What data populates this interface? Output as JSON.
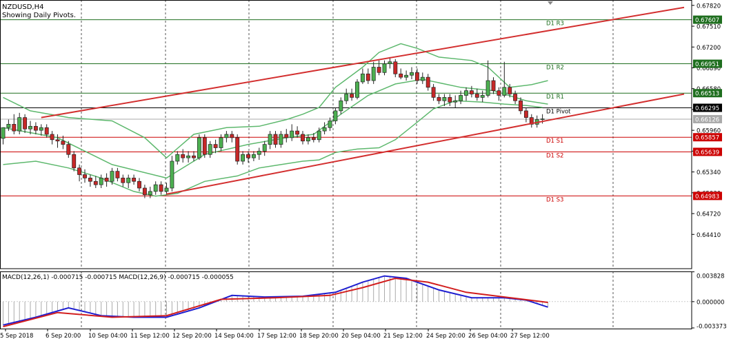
{
  "header": {
    "symbol": "NZDUSD,H4",
    "subtitle": "Showing Daily Pivots."
  },
  "colors": {
    "bull": "#4caf50",
    "bear": "#c62828",
    "band": "#5db86d",
    "channel": "#d32f2f",
    "pivot_green": "#1e6e1e",
    "pivot_red": "#cc0000",
    "pivot_black": "#000000",
    "macd_blue": "#1e1ed0",
    "macd_red": "#d21e1e",
    "current": "#aaaaaa"
  },
  "chart_data": [
    {
      "type": "candlestick",
      "title": "NZDUSD,H4",
      "ylim": [
        0.639,
        0.679
      ],
      "y_ticks": [
        "0.67820",
        "0.67510",
        "0.67200",
        "0.66890",
        "0.66580",
        "0.66270",
        "0.65960",
        "0.65650",
        "0.65340",
        "0.65030",
        "0.64720",
        "0.64410"
      ],
      "x_ticks": [
        "5 Sep 2018",
        "6 Sep 20:00",
        "10 Sep 04:00",
        "11 Sep 12:00",
        "12 Sep 20:00",
        "14 Sep 04:00",
        "17 Sep 12:00",
        "18 Sep 20:00",
        "20 Sep 04:00",
        "21 Sep 12:00",
        "24 Sep 20:00",
        "26 Sep 04:00",
        "27 Sep 12:00"
      ],
      "pivots": [
        {
          "name": "D1 R3",
          "value": 0.67607,
          "label": "0.67607",
          "color": "#1e6e1e"
        },
        {
          "name": "D1 R2",
          "value": 0.66951,
          "label": "0.66951",
          "color": "#1e6e1e"
        },
        {
          "name": "D1 R1",
          "value": 0.66513,
          "label": "0.66513",
          "color": "#1e6e1e"
        },
        {
          "name": "D1 Pivot",
          "value": 0.66295,
          "label": "0.66295",
          "color": "#000000"
        },
        {
          "name": "D1 S1",
          "value": 0.65857,
          "label": "0.65857",
          "color": "#cc0000"
        },
        {
          "name": "D1 S2",
          "value": 0.65639,
          "label": "0.65639",
          "color": "#cc0000"
        },
        {
          "name": "D1 S3",
          "value": 0.64983,
          "label": "0.64983",
          "color": "#cc0000"
        }
      ],
      "current_price": {
        "value": 0.66126,
        "label": "0.66126"
      },
      "candles": [
        [
          0.6584,
          0.66,
          0.66,
          0.6575
        ],
        [
          0.66,
          0.6605,
          0.6612,
          0.6595
        ],
        [
          0.6605,
          0.6595,
          0.662,
          0.659
        ],
        [
          0.6595,
          0.6615,
          0.6622,
          0.659
        ],
        [
          0.6615,
          0.6598,
          0.662,
          0.6592
        ],
        [
          0.6598,
          0.6602,
          0.661,
          0.659
        ],
        [
          0.6602,
          0.6596,
          0.6608,
          0.659
        ],
        [
          0.6596,
          0.66,
          0.6605,
          0.6588
        ],
        [
          0.66,
          0.659,
          0.6605,
          0.6585
        ],
        [
          0.659,
          0.6582,
          0.6595,
          0.6575
        ],
        [
          0.6582,
          0.658,
          0.659,
          0.657
        ],
        [
          0.658,
          0.6575,
          0.6588,
          0.6568
        ],
        [
          0.6575,
          0.656,
          0.658,
          0.6555
        ],
        [
          0.656,
          0.654,
          0.6565,
          0.6535
        ],
        [
          0.654,
          0.653,
          0.6545,
          0.652
        ],
        [
          0.653,
          0.6525,
          0.6538,
          0.6518
        ],
        [
          0.6525,
          0.652,
          0.653,
          0.6512
        ],
        [
          0.652,
          0.6515,
          0.6528,
          0.651
        ],
        [
          0.6515,
          0.6525,
          0.653,
          0.651
        ],
        [
          0.6525,
          0.652,
          0.6532,
          0.6512
        ],
        [
          0.652,
          0.6535,
          0.654,
          0.6515
        ],
        [
          0.6535,
          0.6525,
          0.654,
          0.652
        ],
        [
          0.6525,
          0.6518,
          0.653,
          0.6512
        ],
        [
          0.6518,
          0.6525,
          0.653,
          0.651
        ],
        [
          0.6525,
          0.652,
          0.653,
          0.6515
        ],
        [
          0.652,
          0.651,
          0.6525,
          0.6505
        ],
        [
          0.651,
          0.65,
          0.6515,
          0.6495
        ],
        [
          0.65,
          0.6505,
          0.6512,
          0.6495
        ],
        [
          0.6505,
          0.6515,
          0.652,
          0.65
        ],
        [
          0.6515,
          0.6505,
          0.652,
          0.65
        ],
        [
          0.6505,
          0.651,
          0.6518,
          0.65
        ],
        [
          0.651,
          0.655,
          0.6558,
          0.6505
        ],
        [
          0.655,
          0.656,
          0.6565,
          0.6545
        ],
        [
          0.656,
          0.6555,
          0.6568,
          0.6548
        ],
        [
          0.6555,
          0.6558,
          0.6565,
          0.6548
        ],
        [
          0.6558,
          0.6555,
          0.6565,
          0.655
        ],
        [
          0.6555,
          0.6585,
          0.659,
          0.6552
        ],
        [
          0.6585,
          0.656,
          0.659,
          0.6555
        ],
        [
          0.656,
          0.6575,
          0.658,
          0.6555
        ],
        [
          0.6575,
          0.657,
          0.6582,
          0.6562
        ],
        [
          0.657,
          0.6585,
          0.659,
          0.6565
        ],
        [
          0.6585,
          0.659,
          0.6595,
          0.6578
        ],
        [
          0.659,
          0.6585,
          0.6595,
          0.6578
        ],
        [
          0.6585,
          0.655,
          0.659,
          0.6545
        ],
        [
          0.655,
          0.656,
          0.6565,
          0.6545
        ],
        [
          0.656,
          0.6555,
          0.6565,
          0.6548
        ],
        [
          0.6555,
          0.656,
          0.6565,
          0.655
        ],
        [
          0.656,
          0.6565,
          0.657,
          0.6552
        ],
        [
          0.6565,
          0.6575,
          0.658,
          0.6558
        ],
        [
          0.6575,
          0.659,
          0.6595,
          0.6568
        ],
        [
          0.659,
          0.6575,
          0.6595,
          0.657
        ],
        [
          0.6575,
          0.659,
          0.6595,
          0.657
        ],
        [
          0.659,
          0.6585,
          0.6598,
          0.6578
        ],
        [
          0.6585,
          0.6595,
          0.6605,
          0.658
        ],
        [
          0.6595,
          0.659,
          0.6602,
          0.6585
        ],
        [
          0.659,
          0.658,
          0.6595,
          0.6575
        ],
        [
          0.658,
          0.6585,
          0.659,
          0.6575
        ],
        [
          0.6585,
          0.6582,
          0.6592,
          0.6578
        ],
        [
          0.6582,
          0.6595,
          0.66,
          0.6578
        ],
        [
          0.6595,
          0.66,
          0.6608,
          0.659
        ],
        [
          0.66,
          0.661,
          0.6615,
          0.6595
        ],
        [
          0.661,
          0.6625,
          0.663,
          0.6605
        ],
        [
          0.6625,
          0.664,
          0.6645,
          0.662
        ],
        [
          0.664,
          0.665,
          0.6658,
          0.6635
        ],
        [
          0.665,
          0.6645,
          0.6658,
          0.664
        ],
        [
          0.6645,
          0.6668,
          0.6672,
          0.6642
        ],
        [
          0.6668,
          0.668,
          0.6688,
          0.6665
        ],
        [
          0.668,
          0.667,
          0.6688,
          0.6665
        ],
        [
          0.667,
          0.669,
          0.6698,
          0.6665
        ],
        [
          0.669,
          0.6682,
          0.67,
          0.6678
        ],
        [
          0.6682,
          0.6695,
          0.67,
          0.6678
        ],
        [
          0.6695,
          0.6698,
          0.6705,
          0.6688
        ],
        [
          0.6698,
          0.668,
          0.6702,
          0.6675
        ],
        [
          0.668,
          0.6675,
          0.6688,
          0.6672
        ],
        [
          0.6675,
          0.6678,
          0.6685,
          0.667
        ],
        [
          0.6678,
          0.6682,
          0.669,
          0.6672
        ],
        [
          0.6682,
          0.667,
          0.6688,
          0.6665
        ],
        [
          0.667,
          0.6675,
          0.6682,
          0.6665
        ],
        [
          0.6675,
          0.666,
          0.668,
          0.6655
        ],
        [
          0.666,
          0.6645,
          0.6665,
          0.664
        ],
        [
          0.6645,
          0.664,
          0.665,
          0.6635
        ],
        [
          0.664,
          0.6645,
          0.665,
          0.6632
        ],
        [
          0.6645,
          0.6638,
          0.665,
          0.6632
        ],
        [
          0.6638,
          0.664,
          0.6648,
          0.663
        ],
        [
          0.664,
          0.6648,
          0.6655,
          0.6635
        ],
        [
          0.6648,
          0.6655,
          0.666,
          0.664
        ],
        [
          0.6655,
          0.665,
          0.6662,
          0.6645
        ],
        [
          0.665,
          0.6645,
          0.6658,
          0.664
        ],
        [
          0.6645,
          0.6648,
          0.6655,
          0.6638
        ],
        [
          0.6648,
          0.667,
          0.67,
          0.6645
        ],
        [
          0.667,
          0.6655,
          0.6675,
          0.665
        ],
        [
          0.6655,
          0.6648,
          0.666,
          0.664
        ],
        [
          0.6648,
          0.666,
          0.6698,
          0.6645
        ],
        [
          0.666,
          0.665,
          0.6665,
          0.6645
        ],
        [
          0.665,
          0.664,
          0.6655,
          0.6635
        ],
        [
          0.664,
          0.6625,
          0.6645,
          0.662
        ],
        [
          0.6625,
          0.6615,
          0.663,
          0.6608
        ],
        [
          0.6615,
          0.6605,
          0.662,
          0.66
        ],
        [
          0.6605,
          0.6612,
          0.6618,
          0.66
        ],
        [
          0.6612,
          0.6613,
          0.662,
          0.6606
        ]
      ],
      "bollinger": {
        "middle": [
          [
            0,
            0.66
          ],
          [
            10,
            0.6585
          ],
          [
            20,
            0.6545
          ],
          [
            30,
            0.6525
          ],
          [
            37,
            0.656
          ],
          [
            45,
            0.6575
          ],
          [
            52,
            0.6585
          ],
          [
            57,
            0.659
          ],
          [
            62,
            0.662
          ],
          [
            67,
            0.6648
          ],
          [
            72,
            0.6665
          ],
          [
            77,
            0.6672
          ],
          [
            84,
            0.666
          ],
          [
            90,
            0.6655
          ],
          [
            96,
            0.664
          ],
          [
            100,
            0.6635
          ]
        ],
        "upper": [
          [
            0,
            0.6645
          ],
          [
            5,
            0.6625
          ],
          [
            12,
            0.6615
          ],
          [
            20,
            0.661
          ],
          [
            26,
            0.6585
          ],
          [
            30,
            0.6555
          ],
          [
            35,
            0.659
          ],
          [
            41,
            0.66
          ],
          [
            47,
            0.6602
          ],
          [
            52,
            0.6612
          ],
          [
            55,
            0.662
          ],
          [
            58,
            0.663
          ],
          [
            61,
            0.666
          ],
          [
            63,
            0.6672
          ],
          [
            66,
            0.669
          ],
          [
            69,
            0.6712
          ],
          [
            73,
            0.6725
          ],
          [
            76,
            0.6718
          ],
          [
            80,
            0.6705
          ],
          [
            86,
            0.67
          ],
          [
            89,
            0.669
          ],
          [
            93,
            0.666
          ],
          [
            97,
            0.6664
          ],
          [
            100,
            0.667
          ]
        ],
        "lower": [
          [
            0,
            0.6545
          ],
          [
            6,
            0.655
          ],
          [
            12,
            0.654
          ],
          [
            18,
            0.6525
          ],
          [
            24,
            0.6505
          ],
          [
            28,
            0.6498
          ],
          [
            32,
            0.6502
          ],
          [
            37,
            0.652
          ],
          [
            43,
            0.6528
          ],
          [
            47,
            0.654
          ],
          [
            51,
            0.6545
          ],
          [
            55,
            0.655
          ],
          [
            58,
            0.6552
          ],
          [
            61,
            0.6563
          ],
          [
            65,
            0.6568
          ],
          [
            69,
            0.657
          ],
          [
            72,
            0.6582
          ],
          [
            76,
            0.6608
          ],
          [
            79,
            0.6628
          ],
          [
            83,
            0.664
          ],
          [
            88,
            0.6638
          ],
          [
            92,
            0.6635
          ],
          [
            96,
            0.6633
          ],
          [
            99,
            0.663
          ]
        ]
      },
      "channel_lines": [
        {
          "from": [
            7,
            0.6615
          ],
          "to": [
            125,
            0.6779
          ]
        },
        {
          "from": [
            30,
            0.6501
          ],
          "to": [
            125,
            0.665
          ]
        }
      ]
    },
    {
      "type": "line",
      "title": "MACD(12,26,1) -0.000715 -0.000715 MACD(12,26,9) -0.000715 -0.000055",
      "ylim": [
        -0.00346,
        0.00388
      ],
      "y_ticks": [
        "0.003828",
        "0.000000",
        "-0.003373"
      ],
      "series": [
        {
          "values": [
            [
              0,
              -0.003
            ],
            [
              6,
              -0.002
            ],
            [
              12,
              -0.0008
            ],
            [
              18,
              -0.0018
            ],
            [
              24,
              -0.002
            ],
            [
              30,
              -0.002
            ],
            [
              36,
              -0.0008
            ],
            [
              42,
              0.0008
            ],
            [
              48,
              0.0006
            ],
            [
              55,
              0.0007
            ],
            [
              61,
              0.0012
            ],
            [
              66,
              0.0025
            ],
            [
              70,
              0.0033
            ],
            [
              74,
              0.003
            ],
            [
              80,
              0.0015
            ],
            [
              86,
              0.0005
            ],
            [
              92,
              0.0005
            ],
            [
              96,
              0.0002
            ],
            [
              100,
              -0.0007
            ]
          ]
        },
        {
          "values": [
            [
              0,
              -0.0032
            ],
            [
              10,
              -0.0014
            ],
            [
              20,
              -0.002
            ],
            [
              30,
              -0.0018
            ],
            [
              40,
              0.0003
            ],
            [
              50,
              0.0005
            ],
            [
              60,
              0.0008
            ],
            [
              66,
              0.0018
            ],
            [
              72,
              0.003
            ],
            [
              78,
              0.0025
            ],
            [
              85,
              0.0012
            ],
            [
              92,
              0.0006
            ],
            [
              100,
              -0.0001
            ]
          ]
        }
      ]
    }
  ]
}
